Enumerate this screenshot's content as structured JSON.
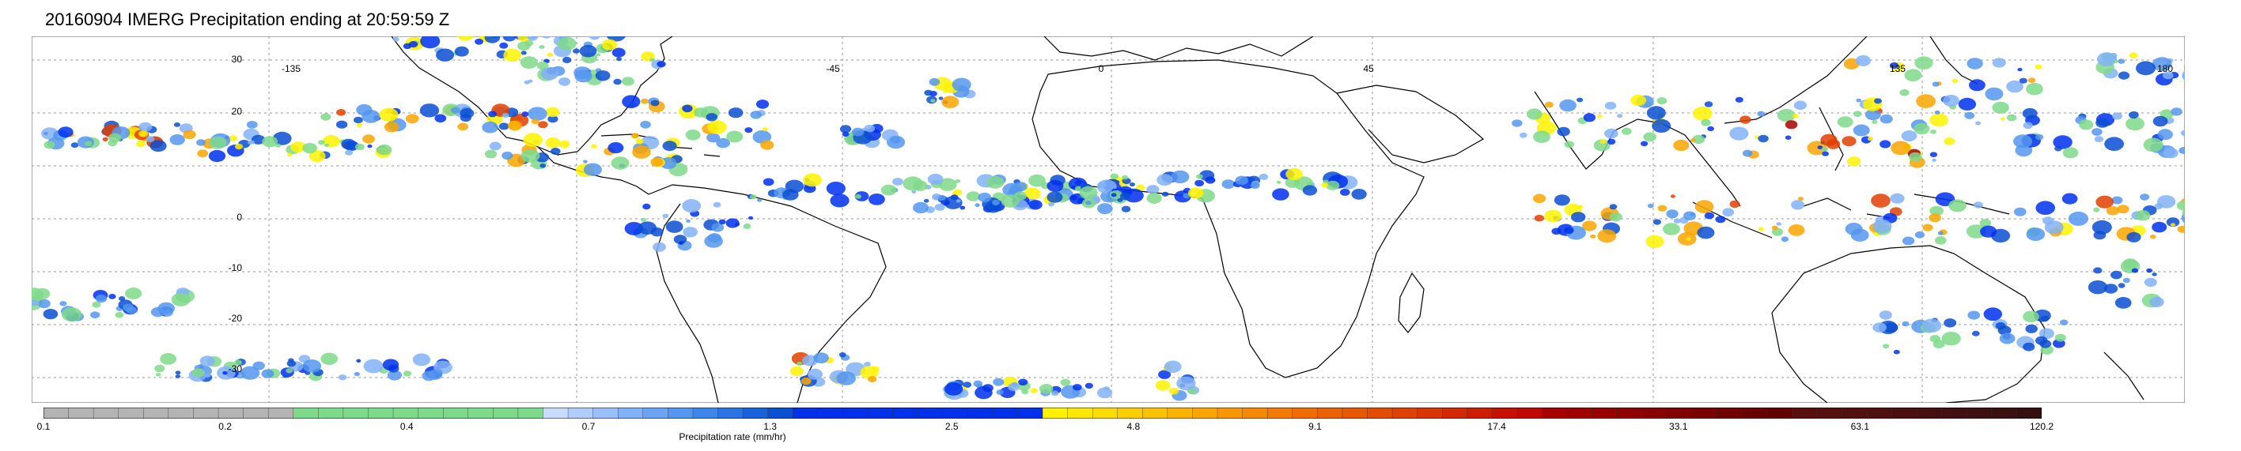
{
  "title": "20160904 IMERG Precipitation ending at 20:59:59 Z",
  "map": {
    "lon_labels": [
      "-135",
      "-45",
      "0",
      "45",
      "135",
      "180"
    ],
    "lat_labels": [
      "30",
      "20",
      "0",
      "-10",
      "-20",
      "-30"
    ],
    "gridlines": true
  },
  "colorbar": {
    "label": "Precipitation rate (mm/hr)",
    "tick_labels": [
      "0.1",
      "0.2",
      "0.4",
      "0.7",
      "1.3",
      "2.5",
      "4.8",
      "9.1",
      "17.4",
      "33.1",
      "63.1",
      "120.2"
    ],
    "colors": [
      "#b4b4b4",
      "#b4b4b4",
      "#b4b4b4",
      "#b4b4b4",
      "#b4b4b4",
      "#b4b4b4",
      "#b4b4b4",
      "#b4b4b4",
      "#b4b4b4",
      "#b4b4b4",
      "#7fd98a",
      "#7fd98a",
      "#7fd98a",
      "#7fd98a",
      "#7fd98a",
      "#7fd98a",
      "#7fd98a",
      "#7fd98a",
      "#7fd98a",
      "#7fd98a",
      "#c9dcff",
      "#b1cdfd",
      "#9ac0fb",
      "#82b2f7",
      "#6aa4f3",
      "#5596ef",
      "#3f86ea",
      "#2c74e4",
      "#1a62dc",
      "#0b4fd2",
      "#0030ee",
      "#0030ee",
      "#0030ee",
      "#0030ee",
      "#0030ee",
      "#0030ee",
      "#0030ee",
      "#0030ee",
      "#0030ee",
      "#0030ee",
      "#fff200",
      "#fee700",
      "#fddc00",
      "#fccf00",
      "#fbc200",
      "#fab400",
      "#f9a600",
      "#f79800",
      "#f58a00",
      "#f37c00",
      "#f06c00",
      "#ec6200",
      "#e85800",
      "#e44c00",
      "#e04000",
      "#db3400",
      "#d52800",
      "#cf1c00",
      "#c81000",
      "#c00800",
      "#a80000",
      "#a00000",
      "#980000",
      "#900000",
      "#880000",
      "#800000",
      "#780000",
      "#700000",
      "#680000",
      "#600000",
      "#5a0f0f",
      "#561010",
      "#521010",
      "#4e1010",
      "#4a1010",
      "#461010",
      "#421010",
      "#3e1010",
      "#3a1010",
      "#361010"
    ]
  }
}
